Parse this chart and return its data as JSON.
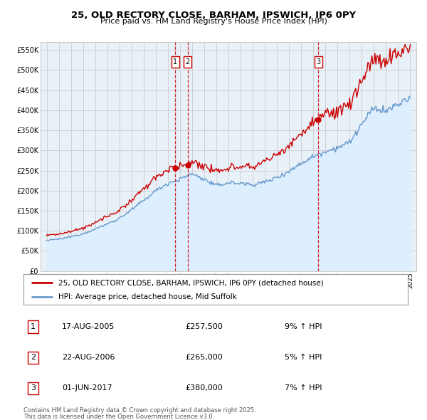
{
  "title": "25, OLD RECTORY CLOSE, BARHAM, IPSWICH, IP6 0PY",
  "subtitle": "Price paid vs. HM Land Registry's House Price Index (HPI)",
  "legend_line1": "25, OLD RECTORY CLOSE, BARHAM, IPSWICH, IP6 0PY (detached house)",
  "legend_line2": "HPI: Average price, detached house, Mid Suffolk",
  "footer1": "Contains HM Land Registry data © Crown copyright and database right 2025.",
  "footer2": "This data is licensed under the Open Government Licence v3.0.",
  "transactions": [
    {
      "num": 1,
      "date": "17-AUG-2005",
      "price": "£257,500",
      "change": "9% ↑ HPI",
      "year": 2005.625
    },
    {
      "num": 2,
      "date": "22-AUG-2006",
      "price": "£265,000",
      "change": "5% ↑ HPI",
      "year": 2006.625
    },
    {
      "num": 3,
      "date": "01-JUN-2017",
      "price": "£380,000",
      "change": "7% ↑ HPI",
      "year": 2017.417
    }
  ],
  "hpi_color": "#6699cc",
  "hpi_fill_color": "#ddeeff",
  "price_color": "#cc0000",
  "vline_color": "#cc0000",
  "grid_color": "#cccccc",
  "background_chart": "#e8f0f8",
  "ylim": [
    0,
    570000
  ],
  "yticks": [
    0,
    50000,
    100000,
    150000,
    200000,
    250000,
    300000,
    350000,
    400000,
    450000,
    500000,
    550000
  ],
  "xlim_start": 1994.5,
  "xlim_end": 2025.5
}
